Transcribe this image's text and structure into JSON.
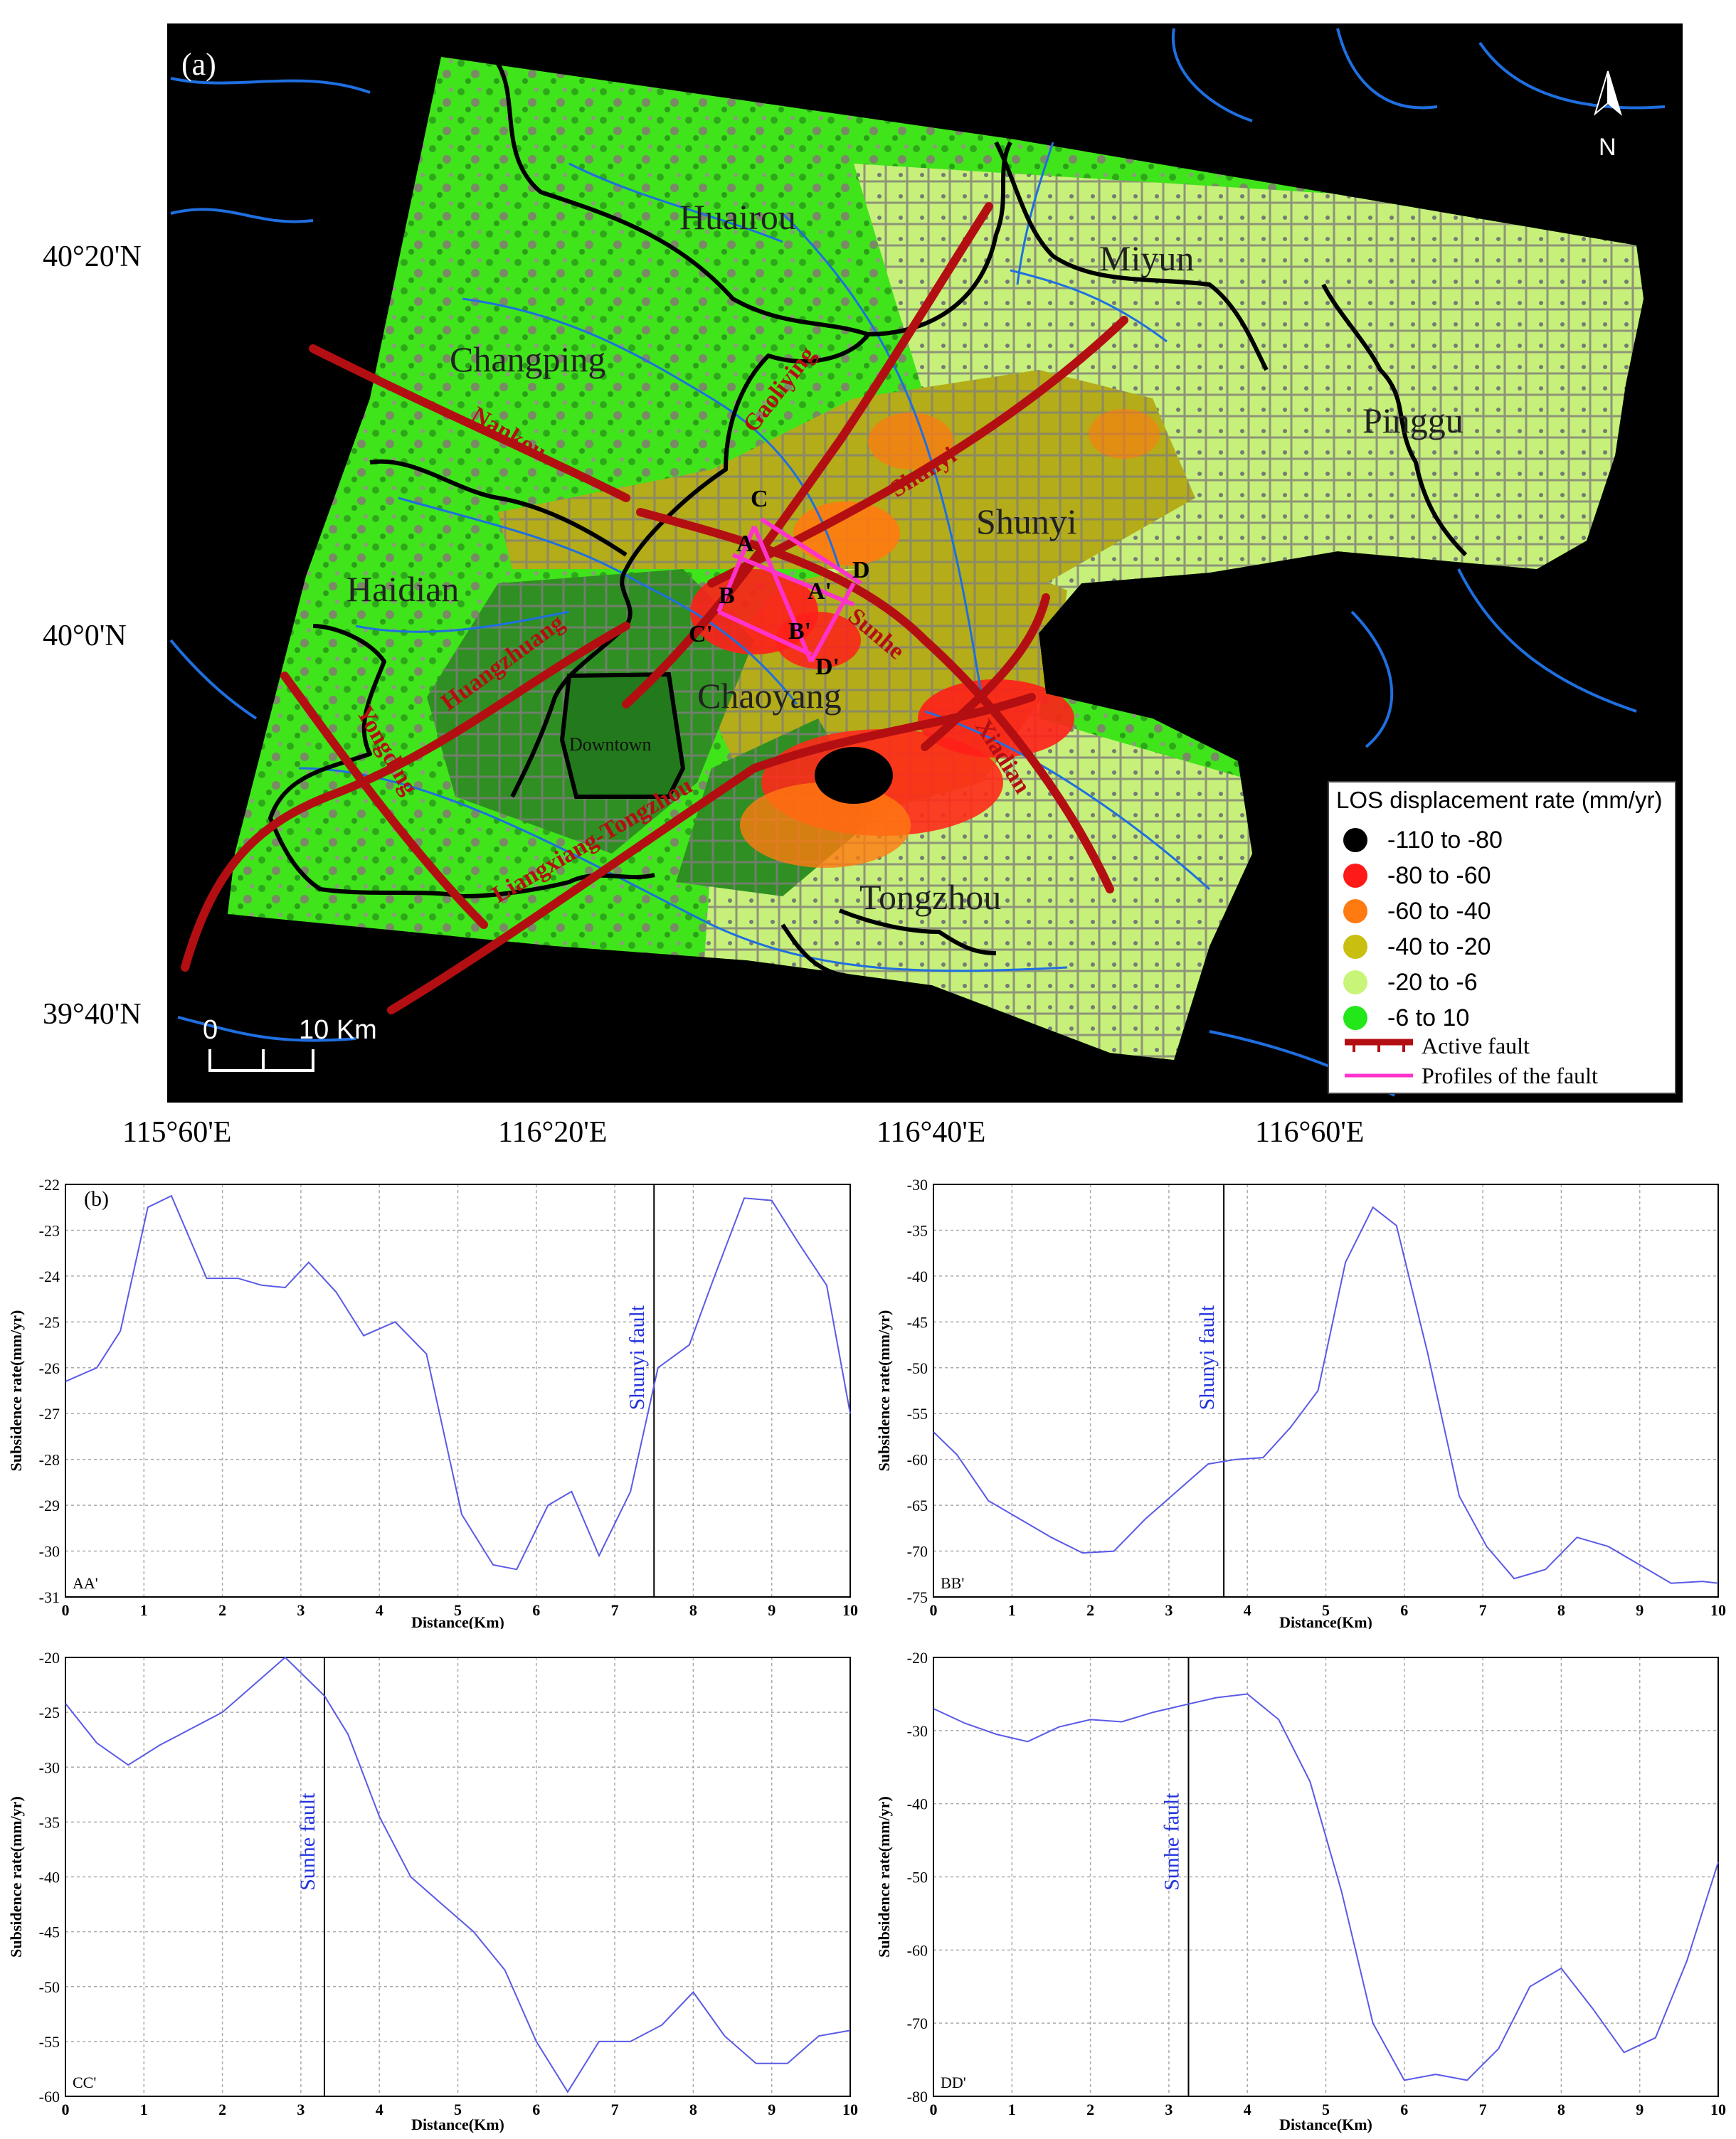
{
  "map": {
    "panel_label": "(a)",
    "north_label": "N",
    "scale_start": "0",
    "scale_end": "10 Km",
    "lat_labels": [
      "40°20'N",
      "40°0'N",
      "39°40'N"
    ],
    "lon_labels": [
      "115°60'E",
      "116°20'E",
      "116°40'E",
      "116°60'E"
    ],
    "districts": [
      "Huairou",
      "Miyun",
      "Changping",
      "Pinggu",
      "Shunyi",
      "Haidian",
      "Chaoyang",
      "Downtown",
      "Tongzhou"
    ],
    "faults": [
      "Nankou",
      "Gaoliying",
      "Shunyi",
      "Sunhe",
      "Huangzhuang",
      "Yongding",
      "Liangxiang-Tongzhou",
      "Xiadian"
    ],
    "profile_points": [
      "A",
      "A'",
      "B",
      "B'",
      "C",
      "C'",
      "D",
      "D'"
    ],
    "colors": {
      "water": "#1f6fe0",
      "fault": "#b30f12",
      "profile": "#ff33cc",
      "boundary": "#000000"
    }
  },
  "legend": {
    "title": "LOS displacement rate (mm/yr)",
    "items": [
      {
        "label": "-110  to  -80",
        "color": "#000000"
      },
      {
        "label": "-80  to  -60",
        "color": "#ff1a1a"
      },
      {
        "label": "-60  to  -40",
        "color": "#ff7a10"
      },
      {
        "label": "-40  to  -20",
        "color": "#c8bf10"
      },
      {
        "label": "-20  to  -6",
        "color": "#c8f578"
      },
      {
        "label": "-6  to  10",
        "color": "#22e81a"
      }
    ],
    "active_fault": "Active fault",
    "profiles": "Profiles of the fault"
  },
  "chart_data": [
    {
      "type": "line",
      "panel_label": "(b)",
      "profile": "AA'",
      "xlabel": "Distance(Km)",
      "ylabel": "Subsidence rate(mm/yr)",
      "xlim": [
        0,
        10
      ],
      "ylim": [
        -31,
        -22
      ],
      "xticks": [
        0,
        1,
        2,
        3,
        4,
        5,
        6,
        7,
        8,
        9,
        10
      ],
      "yticks": [
        -22,
        -23,
        -24,
        -25,
        -26,
        -27,
        -28,
        -29,
        -30,
        -31
      ],
      "grid": true,
      "fault_line": {
        "x": 7.5,
        "label": "Shunyi fault"
      },
      "x": [
        0,
        0.4,
        0.7,
        1.05,
        1.35,
        1.8,
        2.2,
        2.5,
        2.8,
        3.1,
        3.45,
        3.8,
        4.2,
        4.6,
        5.05,
        5.45,
        5.75,
        6.15,
        6.45,
        6.8,
        7.2,
        7.55,
        7.95,
        8.25,
        8.65,
        9.0,
        9.35,
        9.7,
        10.0
      ],
      "y": [
        -26.3,
        -26.0,
        -25.2,
        -22.5,
        -22.25,
        -24.05,
        -24.05,
        -24.2,
        -24.25,
        -23.7,
        -24.35,
        -25.3,
        -25.0,
        -25.7,
        -29.2,
        -30.3,
        -30.4,
        -29.0,
        -28.7,
        -30.1,
        -28.7,
        -26.0,
        -25.5,
        -24.1,
        -22.3,
        -22.35,
        -23.3,
        -24.2,
        -27.0
      ]
    },
    {
      "type": "line",
      "profile": "BB'",
      "xlabel": "Distance(Km)",
      "ylabel": "Subsidence rate(mm/yr)",
      "xlim": [
        0,
        10
      ],
      "ylim": [
        -75,
        -30
      ],
      "xticks": [
        0,
        1,
        2,
        3,
        4,
        5,
        6,
        7,
        8,
        9,
        10
      ],
      "yticks": [
        -30,
        -35,
        -40,
        -45,
        -50,
        -55,
        -60,
        -65,
        -70,
        -75
      ],
      "grid": true,
      "fault_line": {
        "x": 3.7,
        "label": "Shunyi fault"
      },
      "x": [
        0,
        0.3,
        0.7,
        1.1,
        1.5,
        1.9,
        2.3,
        2.7,
        3.1,
        3.5,
        3.85,
        4.2,
        4.55,
        4.9,
        5.25,
        5.6,
        5.9,
        6.3,
        6.7,
        7.05,
        7.4,
        7.8,
        8.2,
        8.6,
        9.0,
        9.4,
        9.8,
        10.0
      ],
      "y": [
        -57,
        -59.5,
        -64.5,
        -66.5,
        -68.5,
        -70.2,
        -70.0,
        -66.5,
        -63.5,
        -60.5,
        -60.0,
        -59.8,
        -56.5,
        -52.5,
        -38.5,
        -32.5,
        -34.5,
        -48.5,
        -64.0,
        -69.5,
        -73.0,
        -72.0,
        -68.5,
        -69.5,
        -71.5,
        -73.5,
        -73.3,
        -73.5
      ]
    },
    {
      "type": "line",
      "profile": "CC'",
      "xlabel": "Distance(Km)",
      "ylabel": "Subsidence rate(mm/yr)",
      "xlim": [
        0,
        10
      ],
      "ylim": [
        -60,
        -20
      ],
      "xticks": [
        0,
        1,
        2,
        3,
        4,
        5,
        6,
        7,
        8,
        9,
        10
      ],
      "yticks": [
        -20,
        -25,
        -30,
        -35,
        -40,
        -45,
        -50,
        -55,
        -60
      ],
      "grid": true,
      "fault_line": {
        "x": 3.3,
        "label": "Sunhe fault"
      },
      "x": [
        0,
        0.4,
        0.8,
        1.2,
        1.6,
        2.0,
        2.4,
        2.8,
        3.3,
        3.6,
        4.0,
        4.4,
        4.8,
        5.2,
        5.6,
        6.0,
        6.4,
        6.8,
        7.2,
        7.6,
        8.0,
        8.4,
        8.8,
        9.2,
        9.6,
        10.0
      ],
      "y": [
        -24.2,
        -27.8,
        -29.8,
        -28.0,
        -26.5,
        -25.0,
        -22.5,
        -20.0,
        -23.5,
        -27.0,
        -34.5,
        -40.0,
        -42.5,
        -45.0,
        -48.5,
        -55.0,
        -59.6,
        -55.0,
        -55.0,
        -53.5,
        -50.5,
        -54.5,
        -57.0,
        -57.0,
        -54.5,
        -54.0
      ]
    },
    {
      "type": "line",
      "profile": "DD'",
      "xlabel": "Distance(Km)",
      "ylabel": "Subsidence rate(mm/yr)",
      "xlim": [
        0,
        10
      ],
      "ylim": [
        -80,
        -20
      ],
      "xticks": [
        0,
        1,
        2,
        3,
        4,
        5,
        6,
        7,
        8,
        9,
        10
      ],
      "yticks": [
        -20,
        -30,
        -40,
        -50,
        -60,
        -70,
        -80
      ],
      "grid": true,
      "fault_line": {
        "x": 3.25,
        "label": "Sunhe fault"
      },
      "x": [
        0,
        0.4,
        0.8,
        1.2,
        1.6,
        2.0,
        2.4,
        2.8,
        3.2,
        3.6,
        4.0,
        4.4,
        4.8,
        5.2,
        5.6,
        6.0,
        6.4,
        6.8,
        7.2,
        7.6,
        8.0,
        8.4,
        8.8,
        9.2,
        9.6,
        10.0
      ],
      "y": [
        -27.0,
        -29.0,
        -30.5,
        -31.5,
        -29.5,
        -28.5,
        -28.8,
        -27.5,
        -26.5,
        -25.5,
        -25.0,
        -28.5,
        -37.0,
        -52.0,
        -70.0,
        -77.8,
        -77.0,
        -77.8,
        -73.5,
        -65.0,
        -62.5,
        -68.0,
        -74.0,
        -72.0,
        -61.5,
        -48.0
      ]
    }
  ]
}
